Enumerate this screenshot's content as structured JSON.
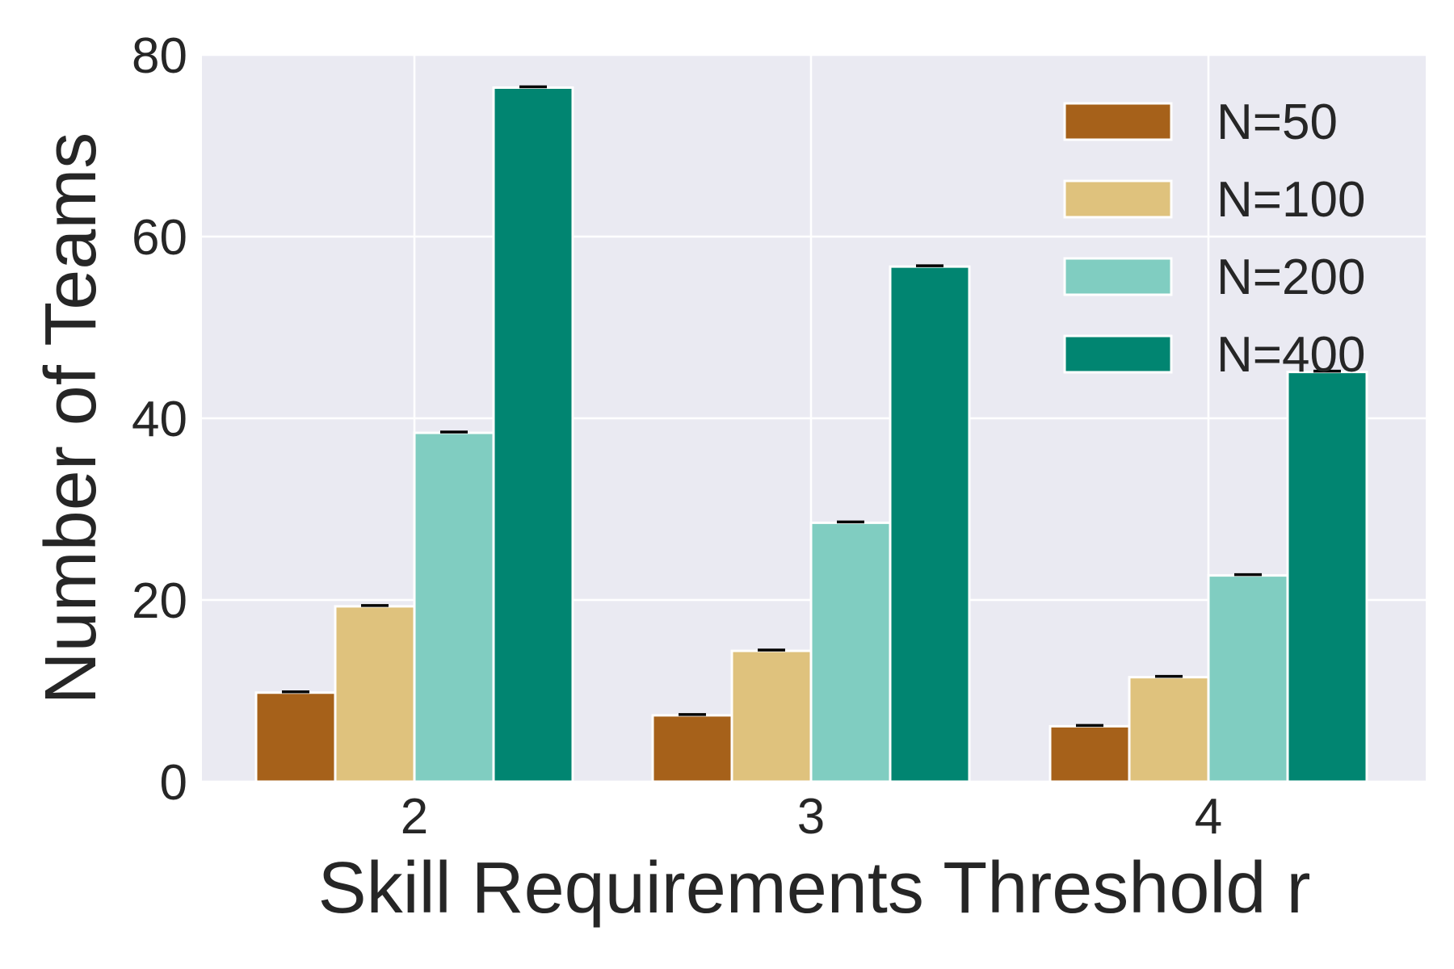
{
  "chart_data": {
    "type": "bar",
    "title": "",
    "xlabel": "Skill Requirements Threshold r",
    "ylabel": "Number of Teams",
    "categories": [
      "2",
      "3",
      "4"
    ],
    "ylim": [
      0,
      80
    ],
    "yticks": [
      0,
      20,
      40,
      60,
      80
    ],
    "grid": true,
    "legend_position": "top-right",
    "series": [
      {
        "name": "N=50",
        "color": "#a6611a",
        "values": [
          9.8,
          7.3,
          6.1
        ]
      },
      {
        "name": "N=100",
        "color": "#dfc27d",
        "values": [
          19.3,
          14.4,
          11.5
        ]
      },
      {
        "name": "N=200",
        "color": "#80cdc1",
        "values": [
          38.4,
          28.5,
          22.7
        ]
      },
      {
        "name": "N=400",
        "color": "#018571",
        "values": [
          76.4,
          56.7,
          45.1
        ]
      }
    ],
    "error_bars": true,
    "background": "#eaeaf2",
    "gridline_color": "#ffffff"
  }
}
